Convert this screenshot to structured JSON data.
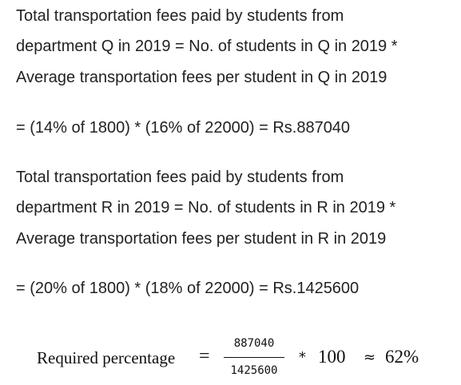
{
  "lines": [
    "Total transportation fees paid by students from",
    "department Q in 2019 = No. of students in Q in 2019 *",
    "Average transportation fees per student in Q in 2019",
    "= (14% of 1800) * (16% of 22000) = Rs.887040",
    "Total transportation fees paid by students from",
    "department R in 2019 = No. of students in R in 2019 *",
    "Average transportation fees per student in R in 2019",
    "= (20% of 1800) * (18% of 22000) = Rs.1425600"
  ],
  "formula": {
    "label": "Required percentage",
    "equals": "=",
    "numerator": "887040",
    "denominator": "1425600",
    "times": "*",
    "multiplier": "100",
    "approx": "≈",
    "result": "62%"
  }
}
